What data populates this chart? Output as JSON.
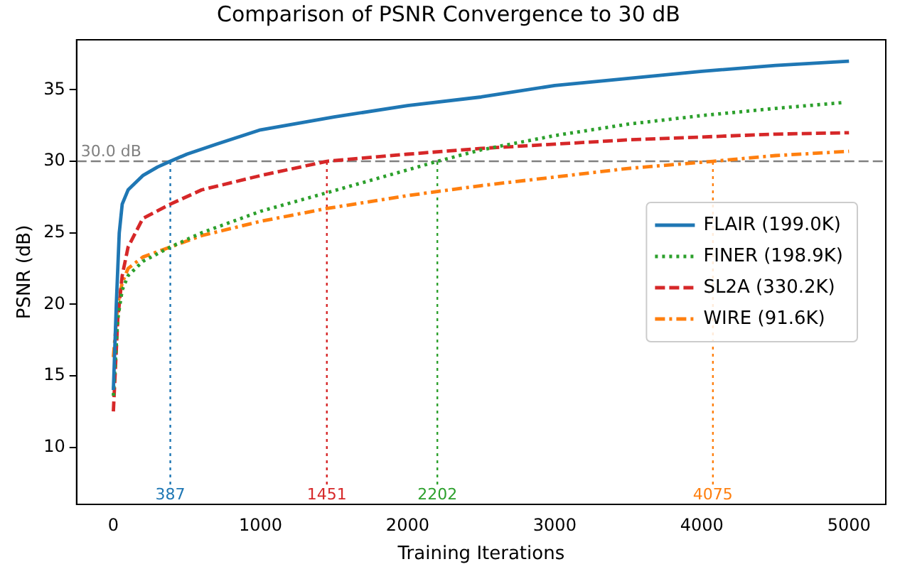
{
  "chart_data": {
    "type": "line",
    "title": "Comparison of PSNR Convergence to 30 dB",
    "xlabel": "Training Iterations",
    "ylabel": "PSNR (dB)",
    "xlim": [
      -250,
      5250
    ],
    "xticks": [
      0,
      1000,
      2000,
      3000,
      4000,
      5000
    ],
    "ylim": [
      6,
      38.5
    ],
    "yticks": [
      10,
      15,
      20,
      25,
      30,
      35
    ],
    "grid": false,
    "legend": "center right",
    "marker": "none",
    "series": [
      {
        "name": "FLAIR (199.0K)",
        "color": "#1f77b4",
        "line_style": "solid",
        "x": [
          0,
          20,
          40,
          60,
          100,
          200,
          300,
          387,
          500,
          700,
          1000,
          1500,
          2000,
          2500,
          3000,
          3500,
          4000,
          4500,
          5000
        ],
        "values": [
          14,
          20,
          25,
          27,
          28,
          29,
          29.6,
          30,
          30.5,
          31.2,
          32.2,
          33.1,
          33.9,
          34.5,
          35.3,
          35.8,
          36.3,
          36.7,
          37.0
        ]
      },
      {
        "name": "FINER (198.9K)",
        "color": "#2ca02c",
        "line_style": "dotted",
        "x": [
          0,
          30,
          60,
          100,
          200,
          387,
          600,
          1000,
          1451,
          2000,
          2202,
          2500,
          3000,
          3500,
          4000,
          4500,
          4950
        ],
        "values": [
          13.6,
          19,
          21,
          22,
          23,
          24,
          25,
          26.5,
          27.8,
          29.4,
          30,
          30.8,
          31.8,
          32.6,
          33.2,
          33.7,
          34.1
        ]
      },
      {
        "name": "SL2A (330.2K)",
        "color": "#d62728",
        "line_style": "dashed",
        "x": [
          0,
          30,
          60,
          100,
          200,
          387,
          600,
          1000,
          1451,
          2000,
          2500,
          3000,
          3500,
          4000,
          4500,
          5000
        ],
        "values": [
          12.5,
          19,
          22,
          24,
          26,
          27,
          28,
          29,
          30,
          30.5,
          30.9,
          31.2,
          31.5,
          31.7,
          31.9,
          32.0
        ]
      },
      {
        "name": "WIRE (91.6K)",
        "color": "#ff7f0e",
        "line_style": "dashdot",
        "x": [
          0,
          30,
          60,
          100,
          200,
          387,
          600,
          1000,
          1451,
          2000,
          2500,
          3000,
          3500,
          4075,
          4500,
          5000
        ],
        "values": [
          16.3,
          20,
          21.5,
          22.5,
          23.3,
          24,
          24.8,
          25.8,
          26.7,
          27.6,
          28.3,
          28.9,
          29.5,
          30,
          30.4,
          30.7
        ]
      }
    ],
    "ref_lines": [
      {
        "axis": "y",
        "value": 30,
        "label": "30.0 dB",
        "color": "#808080",
        "line_style": "dashed"
      },
      {
        "axis": "x",
        "value": 387,
        "label": "387",
        "color": "#1f77b4",
        "line_style": "dotted"
      },
      {
        "axis": "x",
        "value": 1451,
        "label": "1451",
        "color": "#d62728",
        "line_style": "dotted"
      },
      {
        "axis": "x",
        "value": 2202,
        "label": "2202",
        "color": "#2ca02c",
        "line_style": "dotted"
      },
      {
        "axis": "x",
        "value": 4075,
        "label": "4075",
        "color": "#ff7f0e",
        "line_style": "dotted"
      }
    ]
  }
}
